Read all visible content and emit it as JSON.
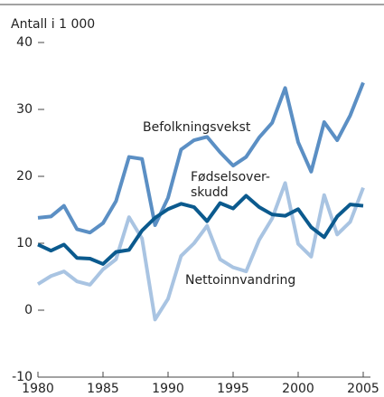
{
  "chart_data": {
    "type": "line",
    "y_label": "Antall i 1 000",
    "x": [
      1980,
      1981,
      1982,
      1983,
      1984,
      1985,
      1986,
      1987,
      1988,
      1989,
      1990,
      1991,
      1992,
      1993,
      1994,
      1995,
      1996,
      1997,
      1998,
      1999,
      2000,
      2001,
      2002,
      2003,
      2004,
      2005
    ],
    "series": [
      {
        "color": "#a9c4e2",
        "values": [
          3.9,
          5.1,
          5.8,
          4.3,
          3.8,
          6.1,
          7.6,
          13.9,
          10.7,
          -1.4,
          1.7,
          8.1,
          10.0,
          12.6,
          7.6,
          6.4,
          5.8,
          10.5,
          13.7,
          19.0,
          9.9,
          8.0,
          17.2,
          11.3,
          13.2,
          18.3
        ]
      },
      {
        "color": "#5b8fc4",
        "values": [
          13.8,
          14.0,
          15.6,
          12.1,
          11.6,
          13.0,
          16.3,
          22.9,
          22.6,
          12.7,
          16.8,
          24.0,
          25.4,
          25.9,
          23.6,
          21.6,
          22.9,
          25.8,
          28.0,
          33.2,
          25.1,
          20.7,
          28.1,
          25.4,
          29.1,
          34.0
        ]
      },
      {
        "color": "#0b5a8e",
        "values": [
          9.8,
          8.9,
          9.8,
          7.8,
          7.7,
          6.9,
          8.7,
          9.0,
          11.9,
          13.8,
          15.1,
          15.9,
          15.4,
          13.3,
          16.0,
          15.2,
          17.1,
          15.4,
          14.3,
          14.1,
          15.1,
          12.4,
          10.9,
          14.0,
          15.8,
          15.6
        ]
      }
    ],
    "annotations": [
      "Nettoinnvandring",
      "Befolkningsvekst",
      [
        "Fødselsover-",
        "skudd"
      ]
    ],
    "xlim": [
      1980,
      2005
    ],
    "xticks": [
      1980,
      1985,
      1990,
      1995,
      2000,
      2005
    ],
    "ylim": [
      -10,
      40
    ],
    "yticks": [
      -10,
      0,
      10,
      20,
      30,
      40
    ]
  }
}
